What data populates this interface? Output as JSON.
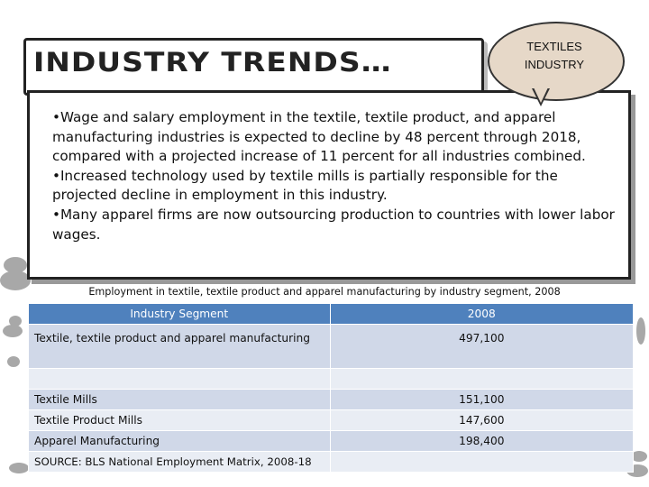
{
  "header": {
    "title": "INDUSTRY TRENDS…"
  },
  "bubble": {
    "line1": "TEXTILES",
    "line2": "INDUSTRY"
  },
  "content": {
    "bullets": [
      "•Wage and salary employment in the textile, textile product, and apparel manufacturing industries is expected to decline by 48 percent through 2018, compared with a projected increase of 11 percent for all industries combined.",
      "•Increased technology used by textile mills is partially responsible for the projected decline in employment in this industry.",
      "•Many apparel firms are now outsourcing production to countries with lower labor wages."
    ]
  },
  "table": {
    "caption": "Employment in textile, textile product and apparel manufacturing by industry segment, 2008",
    "headers": [
      "Industry Segment",
      "2008"
    ],
    "rows": [
      {
        "segment": "Textile, textile product and apparel manufacturing",
        "value": "497,100"
      },
      {
        "segment": "",
        "value": ""
      },
      {
        "segment": "Textile Mills",
        "value": "151,100"
      },
      {
        "segment": "Textile Product Mills",
        "value": "147,600"
      },
      {
        "segment": "Apparel Manufacturing",
        "value": "198,400"
      }
    ],
    "source": "SOURCE: BLS National Employment Matrix, 2008-18"
  }
}
